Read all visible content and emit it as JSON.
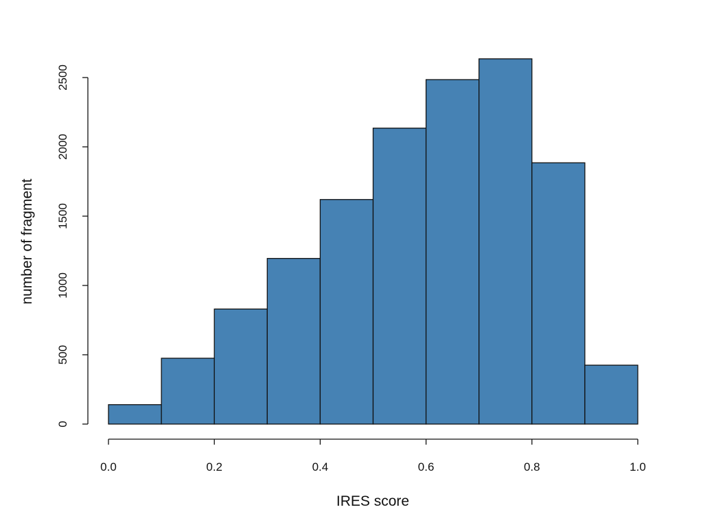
{
  "chart_data": {
    "type": "bar",
    "bins": [
      {
        "x0": 0.0,
        "x1": 0.1,
        "count": 140
      },
      {
        "x0": 0.1,
        "x1": 0.2,
        "count": 475
      },
      {
        "x0": 0.2,
        "x1": 0.3,
        "count": 830
      },
      {
        "x0": 0.3,
        "x1": 0.4,
        "count": 1195
      },
      {
        "x0": 0.4,
        "x1": 0.5,
        "count": 1620
      },
      {
        "x0": 0.5,
        "x1": 0.6,
        "count": 2135
      },
      {
        "x0": 0.6,
        "x1": 0.7,
        "count": 2485
      },
      {
        "x0": 0.7,
        "x1": 0.8,
        "count": 2635
      },
      {
        "x0": 0.8,
        "x1": 0.9,
        "count": 1885
      },
      {
        "x0": 0.9,
        "x1": 1.0,
        "count": 425
      }
    ],
    "xlabel": "IRES score",
    "ylabel": "number of fragment",
    "xlim": [
      0.0,
      1.0
    ],
    "ylim": [
      0,
      2500
    ],
    "x_ticks": [
      "0.0",
      "0.2",
      "0.4",
      "0.6",
      "0.8",
      "1.0"
    ],
    "y_ticks": [
      "0",
      "500",
      "1000",
      "1500",
      "2000",
      "2500"
    ],
    "bar_color": "#4682b4",
    "grid": false
  }
}
